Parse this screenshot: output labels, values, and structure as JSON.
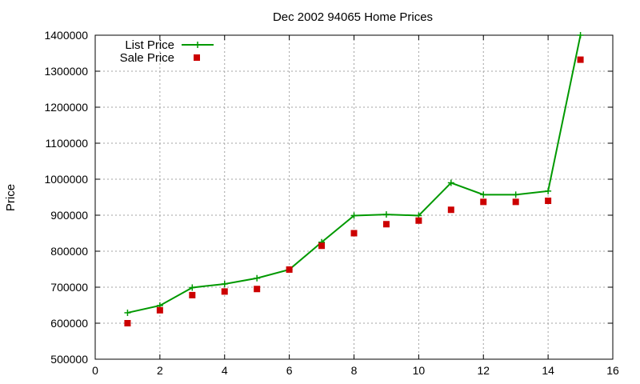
{
  "chart_data": {
    "type": "line",
    "title": "Dec 2002 94065 Home Prices",
    "xlabel": "",
    "ylabel": "Price",
    "xlim": [
      0,
      16
    ],
    "ylim": [
      500000,
      1400000
    ],
    "x_ticks": [
      0,
      2,
      4,
      6,
      8,
      10,
      12,
      14,
      16
    ],
    "y_ticks": [
      500000,
      600000,
      700000,
      800000,
      900000,
      1000000,
      1100000,
      1200000,
      1300000,
      1400000
    ],
    "grid": true,
    "legend_position": "top-left",
    "x": [
      1,
      2,
      3,
      4,
      5,
      6,
      7,
      8,
      9,
      10,
      11,
      12,
      13,
      14,
      15
    ],
    "series": [
      {
        "name": "List Price",
        "style": "line+cross",
        "color": "#009900",
        "values": [
          629000,
          649000,
          699000,
          709000,
          725000,
          749000,
          825000,
          899000,
          902000,
          899000,
          990000,
          957000,
          957000,
          967000,
          1400000
        ]
      },
      {
        "name": "Sale Price",
        "style": "square",
        "color": "#cc0000",
        "values": [
          600000,
          636000,
          678000,
          688000,
          695000,
          749000,
          815000,
          850000,
          875000,
          885000,
          915000,
          937000,
          937000,
          940000,
          1332000
        ]
      }
    ]
  }
}
